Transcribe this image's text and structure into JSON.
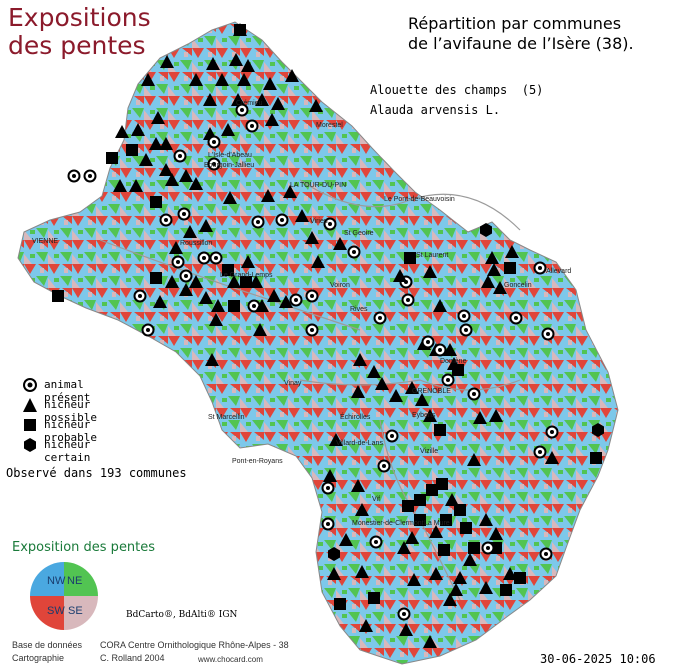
{
  "header": {
    "left_title_line1": "Expositions",
    "left_title_line2": "des pentes",
    "right_title_line1": "Répartition par communes",
    "right_title_line2": "de l’avifaune de l’Isère (38)."
  },
  "species": {
    "common_name": "Alouette des champs  (5)",
    "latin_name": "Alauda arvensis L."
  },
  "legend": {
    "items": [
      {
        "symbol": "circle-marker",
        "label": "animal présent"
      },
      {
        "symbol": "triangle-marker",
        "label": "nicheur possible"
      },
      {
        "symbol": "square-marker",
        "label": "nicheur probable"
      },
      {
        "symbol": "hexagon-marker",
        "label": "nicheur certain"
      }
    ]
  },
  "observed": "Observé dans 193 communes",
  "exposure": {
    "title": "Exposition des pentes",
    "nw": "NW",
    "ne": "NE",
    "sw": "SW",
    "se": "SE",
    "colors": {
      "nw": "#4aa8e0",
      "ne": "#52c452",
      "sw": "#e0453a",
      "se": "#d8b8bc"
    }
  },
  "map_labels": [
    "Crémieu",
    "Morestel",
    "L'Isle-d'Abeau",
    "Bourgoin-Jallieu",
    "LA TOUR-DU-PIN",
    "Le Pont-de-Beauvoisin",
    "VIENNE",
    "Virieu",
    "St Geoire",
    "Roussillon",
    "St Laurent",
    "Voiron",
    "Rives",
    "Le Grand-Lemps",
    "St Marcellin",
    "Vinay",
    "GRENOBLE",
    "Vizille",
    "Allevard",
    "Goncelin",
    "Domène",
    "Villard-de-Lans",
    "Vif",
    "Monestier-de-Clermont",
    "La Mure",
    "Pont-en-Royans",
    "Échirolles",
    "Eybens"
  ],
  "credits": {
    "bdcarto": "BdCarto®, BdAlti® IGN",
    "database_label": "Base de données",
    "database_value": "CORA Centre Ornithologique Rhône-Alpes - 38",
    "cartography_label": "Cartographie",
    "cartography_value": "C. Rolland 2004",
    "website": "www.chocard.com"
  },
  "timestamp": "30-06-2025 10:06"
}
